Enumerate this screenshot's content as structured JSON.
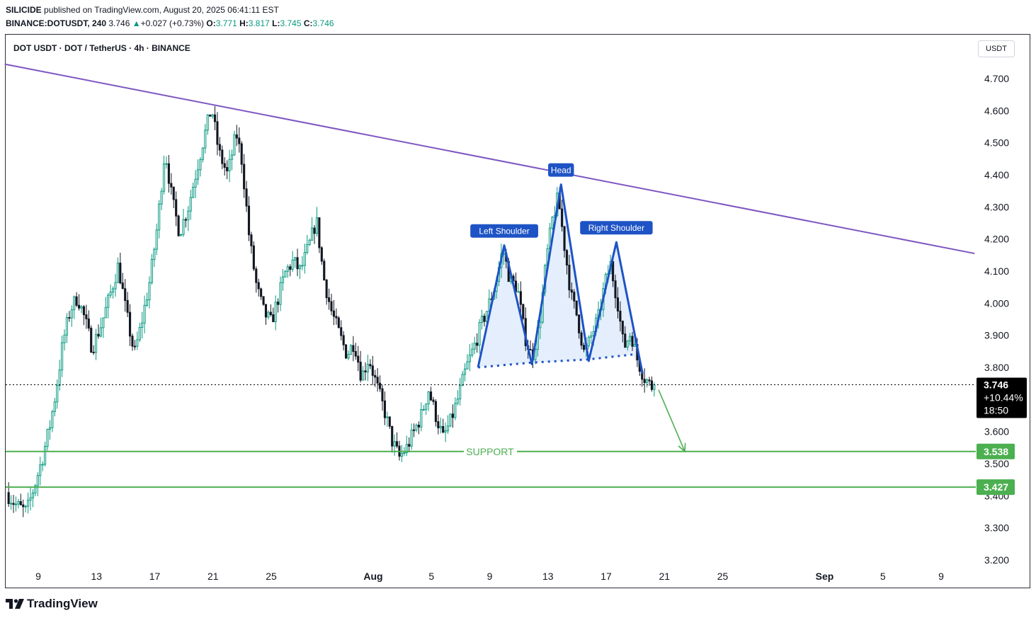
{
  "header": {
    "author": "SILICIDE",
    "published_text": "published on TradingView.com, August 20, 2025 06:41:11 EST",
    "ticker": "BINANCE:DOTUSDT, 240",
    "last": "3.746",
    "change_arrow": "▲",
    "change": "+0.027 (+0.73%)",
    "o_label": "O:",
    "o": "3.771",
    "h_label": "H:",
    "h": "3.817",
    "l_label": "L:",
    "l": "3.745",
    "c_label": "C:",
    "c": "3.746"
  },
  "chart_title": "DOT USDT · DOT / TetherUS · 4h · BINANCE",
  "currency_button": "USDT",
  "brand": "TradingView",
  "colors": {
    "up": "#089981",
    "down": "#131722",
    "trendline": "#7e57c2",
    "support": "#4caf50",
    "pattern": "#1e53c5",
    "pattern_fill": "#dbe8fb",
    "last_price_bg": "#000000"
  },
  "chart_data": {
    "type": "candlestick",
    "timeframe": "4h",
    "pair": "DOTUSDT",
    "y_axis": {
      "range": [
        3.15,
        4.78
      ],
      "ticks": [
        "4.700",
        "4.600",
        "4.500",
        "4.400",
        "4.300",
        "4.200",
        "4.100",
        "4.000",
        "3.900",
        "3.800",
        "3.600",
        "3.500",
        "3.400",
        "3.300",
        "3.200"
      ]
    },
    "x_axis": {
      "ticks": [
        {
          "label": "9",
          "day": 9
        },
        {
          "label": "13",
          "day": 13
        },
        {
          "label": "17",
          "day": 17
        },
        {
          "label": "21",
          "day": 21
        },
        {
          "label": "25",
          "day": 25
        },
        {
          "label": "Aug",
          "day": 32
        },
        {
          "label": "5",
          "day": 36
        },
        {
          "label": "9",
          "day": 40
        },
        {
          "label": "13",
          "day": 44
        },
        {
          "label": "17",
          "day": 48
        },
        {
          "label": "21",
          "day": 52
        },
        {
          "label": "25",
          "day": 56
        },
        {
          "label": "Sep",
          "day": 63
        },
        {
          "label": "5",
          "day": 67
        },
        {
          "label": "9",
          "day": 71
        }
      ],
      "day_unit": "days from July 1, 2025",
      "range": [
        6.7,
        73.5
      ]
    },
    "price_path": [
      [
        6.8,
        3.41
      ],
      [
        7.5,
        3.37
      ],
      [
        8.2,
        3.35
      ],
      [
        8.8,
        3.44
      ],
      [
        9.3,
        3.52
      ],
      [
        9.8,
        3.62
      ],
      [
        10.2,
        3.72
      ],
      [
        10.7,
        3.88
      ],
      [
        11.2,
        3.98
      ],
      [
        11.7,
        4.02
      ],
      [
        12.2,
        3.95
      ],
      [
        12.7,
        3.86
      ],
      [
        13.3,
        3.93
      ],
      [
        13.9,
        4.02
      ],
      [
        14.5,
        4.12
      ],
      [
        15.0,
        3.98
      ],
      [
        15.6,
        3.84
      ],
      [
        16.1,
        3.94
      ],
      [
        16.7,
        4.08
      ],
      [
        17.2,
        4.25
      ],
      [
        17.7,
        4.48
      ],
      [
        18.2,
        4.32
      ],
      [
        18.7,
        4.22
      ],
      [
        19.3,
        4.3
      ],
      [
        19.9,
        4.42
      ],
      [
        20.4,
        4.52
      ],
      [
        20.9,
        4.61
      ],
      [
        21.4,
        4.47
      ],
      [
        22.0,
        4.4
      ],
      [
        22.6,
        4.53
      ],
      [
        23.0,
        4.44
      ],
      [
        23.5,
        4.2
      ],
      [
        24.0,
        4.05
      ],
      [
        24.5,
        3.97
      ],
      [
        25.0,
        3.94
      ],
      [
        25.5,
        4.02
      ],
      [
        26.0,
        4.1
      ],
      [
        26.5,
        4.13
      ],
      [
        27.0,
        4.1
      ],
      [
        27.6,
        4.18
      ],
      [
        28.1,
        4.26
      ],
      [
        28.6,
        4.08
      ],
      [
        29.1,
        3.98
      ],
      [
        29.7,
        3.9
      ],
      [
        30.2,
        3.84
      ],
      [
        30.7,
        3.88
      ],
      [
        31.2,
        3.77
      ],
      [
        31.7,
        3.83
      ],
      [
        32.2,
        3.75
      ],
      [
        32.8,
        3.66
      ],
      [
        33.3,
        3.57
      ],
      [
        33.8,
        3.52
      ],
      [
        34.3,
        3.55
      ],
      [
        34.8,
        3.6
      ],
      [
        35.3,
        3.65
      ],
      [
        35.8,
        3.73
      ],
      [
        36.3,
        3.65
      ],
      [
        36.8,
        3.58
      ],
      [
        37.3,
        3.63
      ],
      [
        37.8,
        3.7
      ],
      [
        38.4,
        3.8
      ],
      [
        38.9,
        3.86
      ],
      [
        39.4,
        3.93
      ],
      [
        39.9,
        3.99
      ],
      [
        40.4,
        4.06
      ],
      [
        40.9,
        4.17
      ],
      [
        41.4,
        4.07
      ],
      [
        41.9,
        4.05
      ],
      [
        42.4,
        3.9
      ],
      [
        42.9,
        3.83
      ],
      [
        43.4,
        3.93
      ],
      [
        43.9,
        4.14
      ],
      [
        44.3,
        4.26
      ],
      [
        44.7,
        4.33
      ],
      [
        45.1,
        4.19
      ],
      [
        45.6,
        4.02
      ],
      [
        46.0,
        3.96
      ],
      [
        46.5,
        3.84
      ],
      [
        47.0,
        3.9
      ],
      [
        47.5,
        3.96
      ],
      [
        47.9,
        4.06
      ],
      [
        48.3,
        4.12
      ],
      [
        48.8,
        4.0
      ],
      [
        49.2,
        3.86
      ],
      [
        49.7,
        3.91
      ],
      [
        50.1,
        3.83
      ],
      [
        50.6,
        3.77
      ],
      [
        51.1,
        3.74
      ],
      [
        51.4,
        3.746
      ]
    ],
    "annotations": {
      "descending_trendline": [
        [
          6.7,
          4.745
        ],
        [
          73.3,
          4.155
        ]
      ],
      "support_levels": [
        3.538,
        3.427
      ],
      "support_label": "SUPPORT",
      "head_and_shoulders": {
        "outline": [
          [
            39.2,
            3.8
          ],
          [
            41.0,
            4.18
          ],
          [
            42.9,
            3.81
          ],
          [
            44.9,
            4.37
          ],
          [
            46.8,
            3.82
          ],
          [
            48.7,
            4.19
          ],
          [
            50.5,
            3.78
          ]
        ],
        "neckline": [
          [
            39.2,
            3.8
          ],
          [
            42.9,
            3.815
          ],
          [
            46.8,
            3.825
          ],
          [
            49.8,
            3.84
          ]
        ],
        "labels": [
          {
            "text": "Left Shoulder",
            "x": 41.0,
            "y": 4.18
          },
          {
            "text": "Head",
            "x": 44.9,
            "y": 4.37
          },
          {
            "text": "Right Shoulder",
            "x": 48.7,
            "y": 4.19
          }
        ]
      },
      "target_arrow": [
        [
          51.6,
          3.73
        ],
        [
          53.4,
          3.538
        ]
      ]
    },
    "price_labels": {
      "last": "3.746",
      "last_change": "+10.44%",
      "countdown": "18:50",
      "support_1": "3.538",
      "support_2": "3.427"
    }
  }
}
